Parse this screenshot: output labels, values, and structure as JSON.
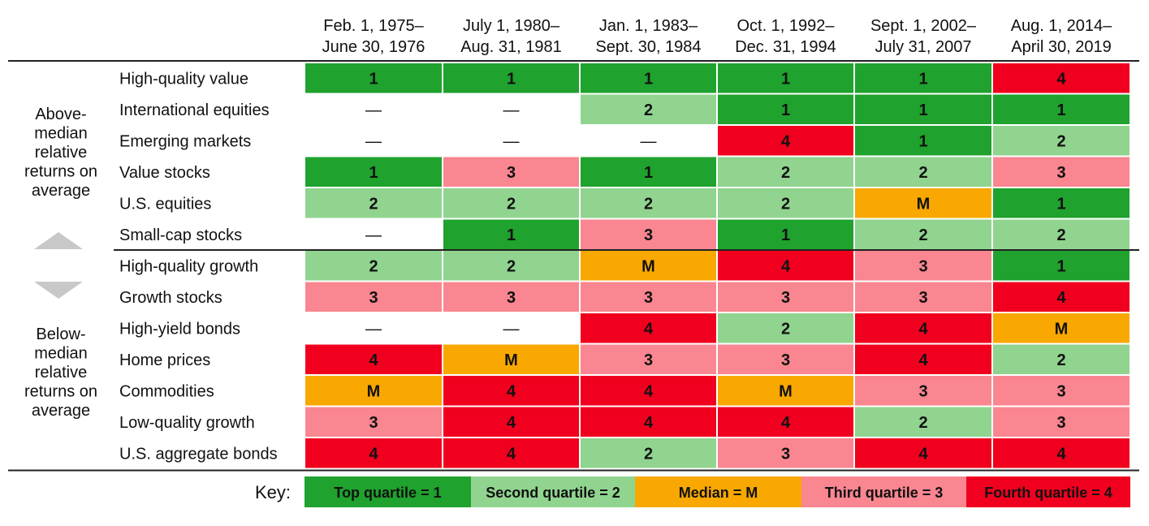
{
  "chart_data": {
    "type": "table",
    "columns": [
      {
        "line1": "Feb. 1, 1975–",
        "line2": "June 30, 1976"
      },
      {
        "line1": "July 1, 1980–",
        "line2": "Aug. 31, 1981"
      },
      {
        "line1": "Jan. 1, 1983–",
        "line2": "Sept. 30, 1984"
      },
      {
        "line1": "Oct. 1, 1992–",
        "line2": "Dec. 31, 1994"
      },
      {
        "line1": "Sept. 1, 2002–",
        "line2": "July 31, 2007"
      },
      {
        "line1": "Aug. 1, 2014–",
        "line2": "April 30, 2019"
      }
    ],
    "rows": [
      {
        "label": "High-quality value",
        "values": [
          "1",
          "1",
          "1",
          "1",
          "1",
          "4"
        ]
      },
      {
        "label": "International equities",
        "values": [
          "—",
          "—",
          "2",
          "1",
          "1",
          "1"
        ]
      },
      {
        "label": "Emerging markets",
        "values": [
          "—",
          "—",
          "—",
          "4",
          "1",
          "2"
        ]
      },
      {
        "label": "Value stocks",
        "values": [
          "1",
          "3",
          "1",
          "2",
          "2",
          "3"
        ]
      },
      {
        "label": "U.S. equities",
        "values": [
          "2",
          "2",
          "2",
          "2",
          "M",
          "1"
        ]
      },
      {
        "label": "Small-cap stocks",
        "values": [
          "—",
          "1",
          "3",
          "1",
          "2",
          "2"
        ]
      },
      {
        "label": "High-quality growth",
        "values": [
          "2",
          "2",
          "M",
          "4",
          "3",
          "1"
        ]
      },
      {
        "label": "Growth stocks",
        "values": [
          "3",
          "3",
          "3",
          "3",
          "3",
          "4"
        ]
      },
      {
        "label": "High-yield bonds",
        "values": [
          "—",
          "—",
          "4",
          "2",
          "4",
          "M"
        ]
      },
      {
        "label": "Home prices",
        "values": [
          "4",
          "M",
          "3",
          "3",
          "4",
          "2"
        ]
      },
      {
        "label": "Commodities",
        "values": [
          "M",
          "4",
          "4",
          "M",
          "3",
          "3"
        ]
      },
      {
        "label": "Low-quality growth",
        "values": [
          "3",
          "4",
          "4",
          "4",
          "2",
          "3"
        ]
      },
      {
        "label": "U.S. aggregate bonds",
        "values": [
          "4",
          "4",
          "2",
          "3",
          "4",
          "4"
        ]
      }
    ],
    "group_above": [
      "Above-",
      "median",
      "relative",
      "returns on",
      "average"
    ],
    "group_below": [
      "Below-",
      "median",
      "relative",
      "returns on",
      "average"
    ],
    "key_label": "Key:",
    "key": [
      {
        "value": "1",
        "text": "Top quartile = 1"
      },
      {
        "value": "2",
        "text": "Second quartile = 2"
      },
      {
        "value": "M",
        "text": "Median = M"
      },
      {
        "value": "3",
        "text": "Third quartile = 3"
      },
      {
        "value": "4",
        "text": "Fourth quartile = 4"
      }
    ],
    "colors": {
      "1": "#1fa22e",
      "2": "#90d48f",
      "M": "#f8a800",
      "3": "#f98690",
      "4": "#f0001e",
      "—": "#ffffff"
    }
  }
}
